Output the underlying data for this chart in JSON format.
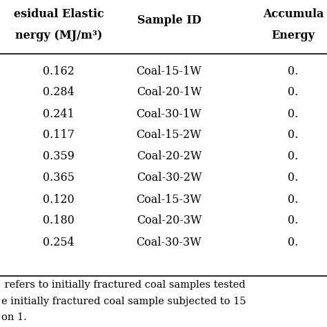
{
  "col1_header_line1": "esidual Elastic",
  "col1_header_line2": "nergy (MJ/m³)",
  "col2_header": "Sample ID",
  "col3_header_line1": "Accumula",
  "col3_header_line2": "Energy",
  "residual_energy": [
    "0.162",
    "0.284",
    "0.241",
    "0.117",
    "0.359",
    "0.365",
    "0.120",
    "0.180",
    "0.254"
  ],
  "sample_id": [
    "Coal-15-1W",
    "Coal-20-1W",
    "Coal-30-1W",
    "Coal-15-2W",
    "Coal-20-2W",
    "Coal-30-2W",
    "Coal-15-3W",
    "Coal-20-3W",
    "Coal-30-3W"
  ],
  "accum_energy": [
    "0.",
    "0.",
    "0.",
    "0.",
    "0.",
    "0.",
    "0.",
    "0.",
    "0."
  ],
  "footnote_line1": " refers to initially fractured coal samples tested",
  "footnote_line2": "e initially fractured coal sample subjected to 15",
  "footnote_line3": "on 1.",
  "bg_color": "#ffffff",
  "line_color": "#000000",
  "text_color": "#000000",
  "header_fontsize": 11.5,
  "body_fontsize": 11.5,
  "footer_fontsize": 10.5
}
